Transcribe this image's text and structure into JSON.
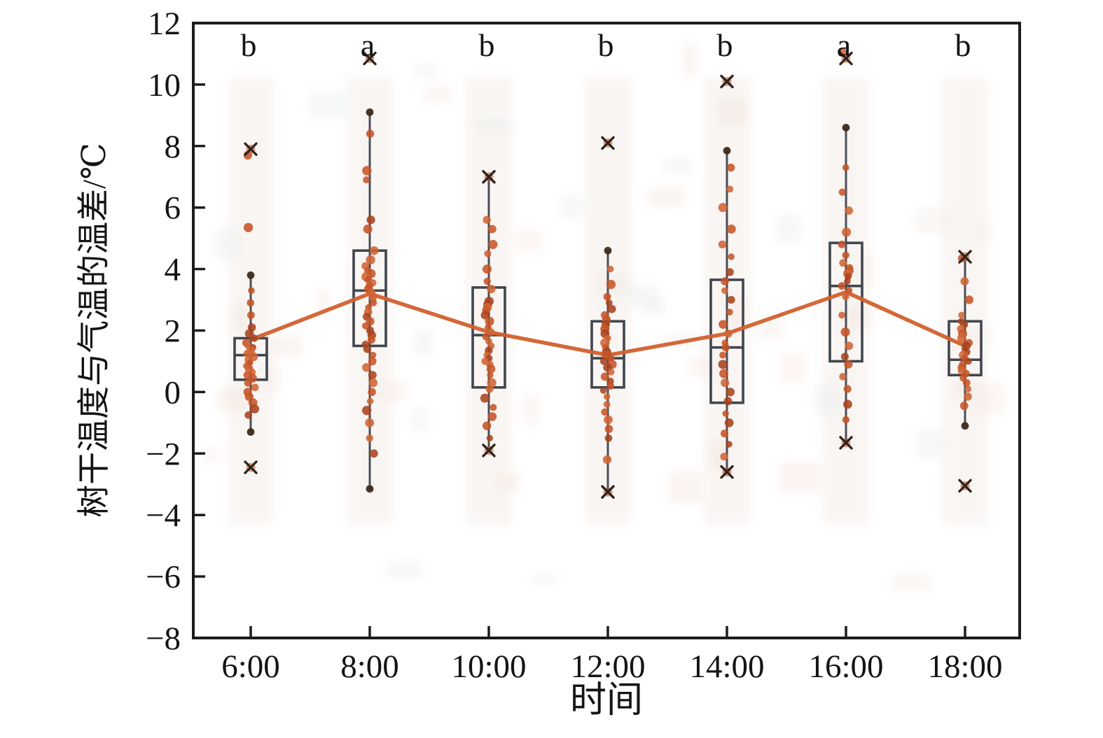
{
  "chart_data": {
    "type": "boxplot",
    "title": "",
    "xlabel": "时间",
    "ylabel": "树干温度与气温的温差/℃",
    "ylim": [
      -8,
      12
    ],
    "yticks": [
      12,
      10,
      8,
      6,
      4,
      2,
      0,
      -2,
      -4,
      -6,
      -8
    ],
    "categories": [
      "6:00",
      "8:00",
      "10:00",
      "12:00",
      "14:00",
      "16:00",
      "18:00"
    ],
    "significance_letters": [
      "b",
      "a",
      "b",
      "b",
      "b",
      "a",
      "b"
    ],
    "legend": "none",
    "grid": false,
    "mean_line_values": [
      1.7,
      3.2,
      1.95,
      1.2,
      1.9,
      3.25,
      1.5
    ],
    "series": [
      {
        "label": "6:00",
        "letter": "b",
        "box": {
          "q1": 0.4,
          "median": 1.2,
          "q3": 1.75,
          "whisker_low": -1.3,
          "whisker_high": 3.8,
          "mean": 1.7
        },
        "x_marks": [
          7.9,
          -2.45
        ],
        "dark_dots": [
          3.8,
          -1.3
        ],
        "points": [
          7.7,
          5.35,
          3.3,
          2.9,
          2.5,
          2.1,
          1.9,
          1.75,
          1.6,
          1.5,
          1.45,
          1.35,
          1.25,
          1.15,
          1.05,
          0.95,
          0.85,
          0.75,
          0.65,
          0.55,
          0.45,
          0.3,
          0.15,
          0.0,
          -0.15,
          -0.35,
          -0.55,
          -0.75
        ]
      },
      {
        "label": "8:00",
        "letter": "a",
        "box": {
          "q1": 1.5,
          "median": 3.3,
          "q3": 4.6,
          "whisker_low": -3.15,
          "whisker_high": 9.1,
          "mean": 3.2
        },
        "x_marks": [
          10.85
        ],
        "dark_dots": [
          9.1,
          -3.15
        ],
        "points": [
          8.4,
          7.2,
          6.9,
          5.6,
          5.3,
          4.6,
          4.3,
          4.1,
          3.95,
          3.85,
          3.75,
          3.65,
          3.55,
          3.45,
          3.35,
          3.25,
          3.15,
          3.05,
          2.9,
          2.75,
          2.6,
          2.45,
          2.3,
          2.15,
          2.0,
          1.85,
          1.7,
          1.55,
          1.4,
          1.2,
          1.0,
          0.8,
          0.55,
          0.3,
          0.0,
          -0.3,
          -0.6,
          -1.0,
          -1.5,
          -2.0
        ]
      },
      {
        "label": "10:00",
        "letter": "b",
        "box": {
          "q1": 0.15,
          "median": 1.85,
          "q3": 3.4,
          "whisker_low": -1.9,
          "whisker_high": 7.0,
          "mean": 1.95
        },
        "x_marks": [
          7.0,
          -1.9
        ],
        "dark_dots": [],
        "points": [
          5.6,
          5.3,
          4.8,
          4.5,
          4.0,
          3.6,
          3.35,
          2.95,
          2.85,
          2.75,
          2.65,
          2.5,
          2.3,
          2.1,
          1.95,
          1.8,
          1.65,
          1.5,
          1.35,
          1.2,
          1.1,
          1.0,
          0.9,
          0.75,
          0.55,
          0.3,
          0.1,
          -0.2,
          -0.5,
          -0.8,
          -1.1,
          -1.5
        ]
      },
      {
        "label": "12:00",
        "letter": "b",
        "box": {
          "q1": 0.15,
          "median": 1.1,
          "q3": 2.3,
          "whisker_low": -3.25,
          "whisker_high": 4.6,
          "mean": 1.2
        },
        "x_marks": [
          8.1,
          -3.25
        ],
        "dark_dots": [
          4.6
        ],
        "points": [
          4.0,
          3.5,
          3.1,
          2.9,
          2.7,
          2.5,
          2.35,
          2.2,
          2.05,
          1.9,
          1.75,
          1.6,
          1.45,
          1.3,
          1.2,
          1.1,
          1.0,
          0.9,
          0.8,
          0.65,
          0.5,
          0.35,
          0.2,
          0.05,
          -0.15,
          -0.4,
          -0.65,
          -0.9,
          -1.2,
          -1.5,
          -2.2
        ]
      },
      {
        "label": "14:00",
        "letter": "b",
        "box": {
          "q1": -0.35,
          "median": 1.45,
          "q3": 3.65,
          "whisker_low": -2.6,
          "whisker_high": 7.85,
          "mean": 1.9
        },
        "x_marks": [
          10.1,
          -2.6
        ],
        "dark_dots": [
          7.85
        ],
        "points": [
          7.3,
          6.6,
          6.0,
          5.3,
          4.8,
          4.4,
          3.9,
          3.6,
          3.3,
          3.0,
          2.6,
          2.2,
          1.9,
          1.6,
          1.45,
          1.2,
          0.9,
          0.6,
          0.3,
          0.0,
          -0.3,
          -0.7,
          -1.0,
          -1.35,
          -1.7,
          -2.1
        ]
      },
      {
        "label": "16:00",
        "letter": "a",
        "box": {
          "q1": 1.0,
          "median": 3.45,
          "q3": 4.85,
          "whisker_low": -1.65,
          "whisker_high": 8.6,
          "mean": 3.25
        },
        "x_marks": [
          10.85,
          -1.65
        ],
        "dark_dots": [
          8.6
        ],
        "points": [
          11.05,
          7.3,
          6.5,
          5.9,
          5.2,
          4.8,
          4.45,
          4.2,
          4.05,
          3.95,
          3.85,
          3.75,
          3.6,
          3.45,
          3.3,
          3.1,
          2.5,
          1.95,
          1.5,
          1.15,
          0.9,
          0.5,
          0.1,
          -0.4,
          -0.9
        ]
      },
      {
        "label": "18:00",
        "letter": "b",
        "box": {
          "q1": 0.55,
          "median": 1.05,
          "q3": 2.3,
          "whisker_low": -1.1,
          "whisker_high": 4.4,
          "mean": 1.5
        },
        "x_marks": [
          4.4,
          -3.05
        ],
        "dark_dots": [
          -1.1
        ],
        "points": [
          4.35,
          3.6,
          3.0,
          2.5,
          2.3,
          2.2,
          2.05,
          1.9,
          1.75,
          1.6,
          1.5,
          1.4,
          1.3,
          1.2,
          1.1,
          1.0,
          0.9,
          0.8,
          0.7,
          0.6,
          0.45,
          0.3,
          0.1,
          -0.15,
          -0.45
        ]
      }
    ],
    "colors": {
      "frame": "#1c1c1c",
      "box_stroke": "#41454d",
      "whisker": "#4a4e55",
      "mean_line": "#d2602e",
      "point_main": "#c65427",
      "point_dark": "#a8431f",
      "point_light": "#cf6434",
      "cap_dot": "#3f2a1a",
      "x_mark": "#2e241e"
    }
  }
}
